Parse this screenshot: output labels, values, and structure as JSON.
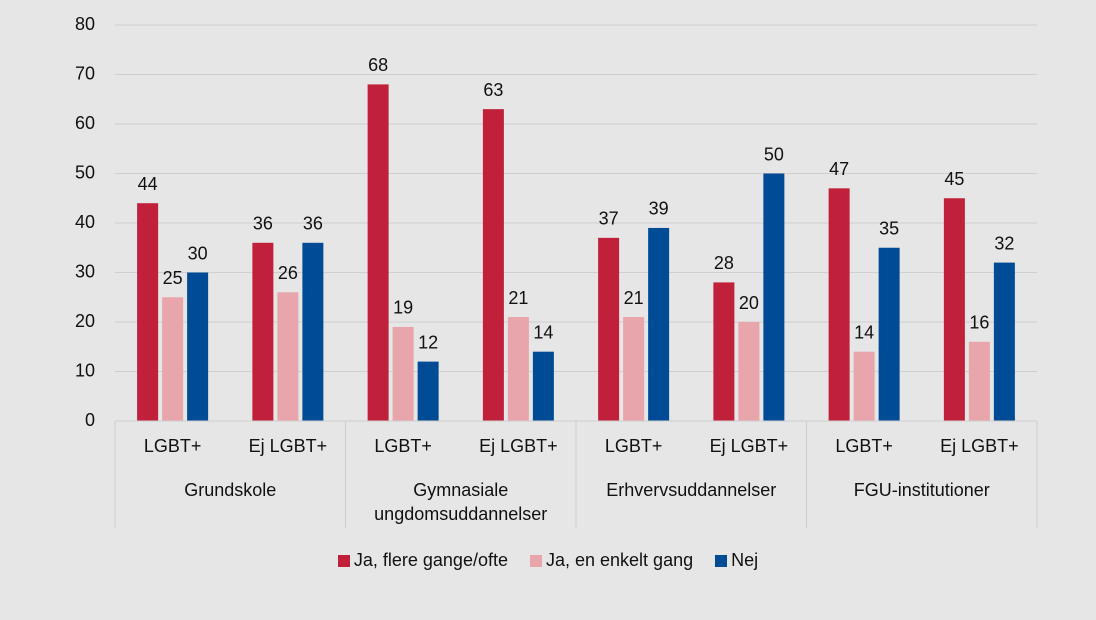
{
  "chart_data": {
    "type": "bar",
    "categories": [
      "LGBT+",
      "Ej LGBT+",
      "LGBT+",
      "Ej LGBT+",
      "LGBT+",
      "Ej LGBT+",
      "LGBT+",
      "Ej LGBT+"
    ],
    "groups": [
      {
        "name": "Grundskole",
        "span": 2
      },
      {
        "name": "Gymnasiale ungdomsuddannelser",
        "span": 2
      },
      {
        "name": "Erhvervsuddannelser",
        "span": 2
      },
      {
        "name": "FGU-institutioner",
        "span": 2
      }
    ],
    "series": [
      {
        "name": "Ja, flere gange/ofte",
        "color": "#c0203a",
        "values": [
          44,
          36,
          68,
          63,
          37,
          28,
          47,
          45
        ]
      },
      {
        "name": "Ja, en enkelt gang",
        "color": "#e8a5ab",
        "values": [
          25,
          26,
          19,
          21,
          21,
          20,
          14,
          16
        ]
      },
      {
        "name": "Nej",
        "color": "#004b96",
        "values": [
          30,
          36,
          12,
          14,
          39,
          50,
          35,
          32
        ]
      }
    ],
    "ylim": [
      0,
      80
    ],
    "yticks": [
      0,
      10,
      20,
      30,
      40,
      50,
      60,
      70,
      80
    ],
    "grid": true,
    "legend": "bottom"
  }
}
